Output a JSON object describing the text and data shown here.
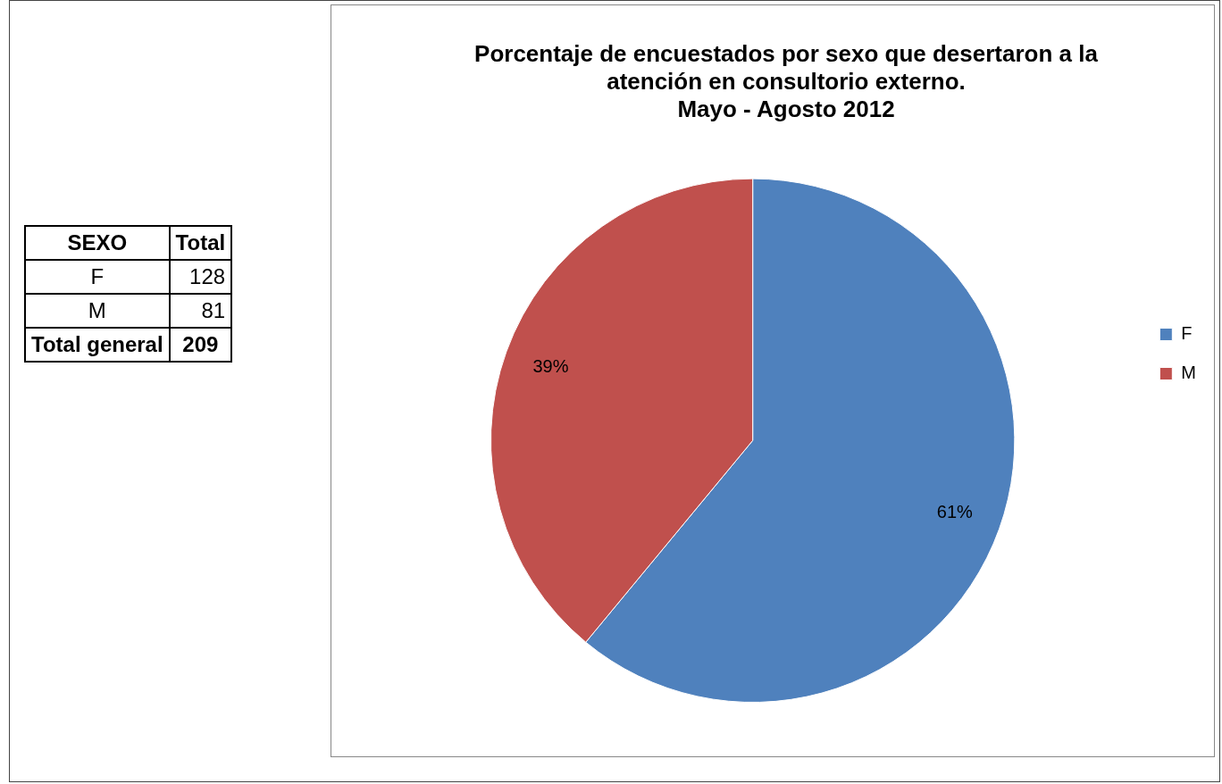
{
  "chart_data": [
    {
      "type": "pie",
      "title": "Porcentaje de encuestados por sexo que desertaron a la\natención en consultorio externo.\nMayo - Agosto 2012",
      "categories": [
        "F",
        "M"
      ],
      "values": [
        61,
        39
      ],
      "colors": [
        "#4f81bd",
        "#c0504d"
      ],
      "value_labels": [
        "61%",
        "39%"
      ],
      "legend": "right"
    },
    {
      "type": "other",
      "annotations": [
        "SEXO",
        "Total",
        "F",
        "128",
        "M",
        "81",
        "Total general",
        "209"
      ]
    }
  ]
}
